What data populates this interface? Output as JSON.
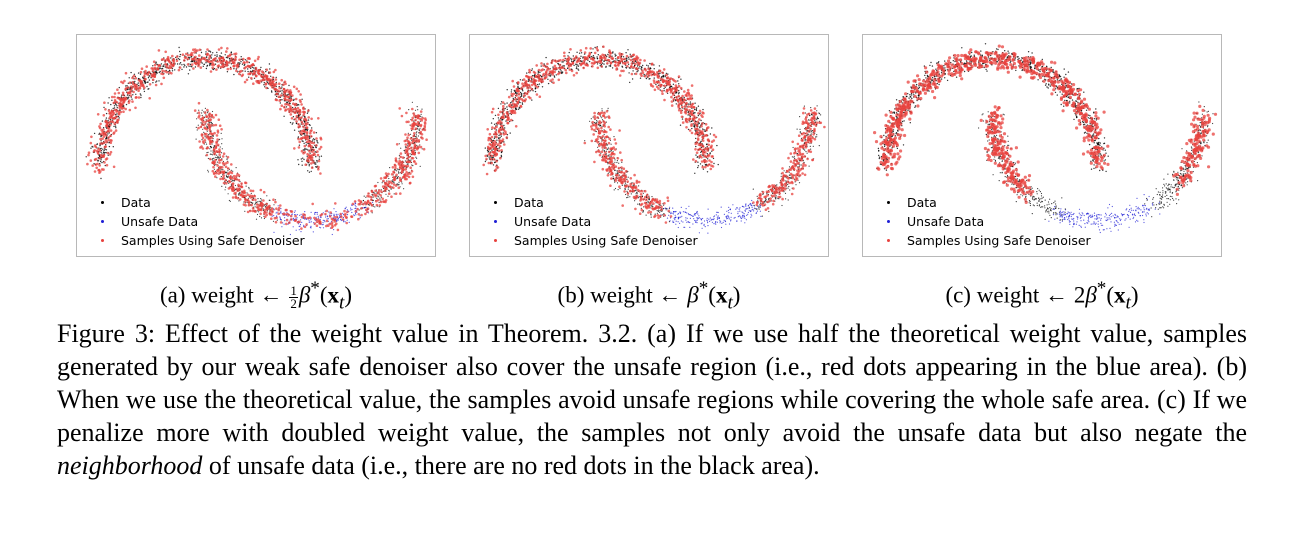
{
  "legend": {
    "data": "Data",
    "unsafe": "Unsafe Data",
    "samples": "Samples Using Safe Denoiser"
  },
  "colors": {
    "data": "#000000",
    "unsafe": "#1f1fd6",
    "samples": "#e8413d"
  },
  "panels": [
    {
      "prefix": "(a) weight ← ",
      "frac_num": "1",
      "frac_den": "2",
      "beta": "β",
      "star": "*",
      "open": "(",
      "x": "x",
      "t": "t",
      "close": ")"
    },
    {
      "prefix": "(b) weight ← ",
      "beta": "β",
      "star": "*",
      "open": "(",
      "x": "x",
      "t": "t",
      "close": ")"
    },
    {
      "prefix": "(c) weight ← 2",
      "beta": "β",
      "star": "*",
      "open": "(",
      "x": "x",
      "t": "t",
      "close": ")"
    }
  ],
  "caption": {
    "p1": "Figure 3: Effect of the weight value in Theorem. 3.2. (a) If we use half the theoretical weight value, samples generated by our weak safe denoiser also cover the unsafe region (i.e., red dots appearing in the blue area). (b) When we use the theoretical value, the samples avoid unsafe regions while covering the whole safe area. (c) If we penalize more with doubled weight value, the samples not only avoid the unsafe data but also negate the ",
    "italic": "neighborhood",
    "p2": " of unsafe data (i.e., there are no red dots in the black area)."
  }
}
